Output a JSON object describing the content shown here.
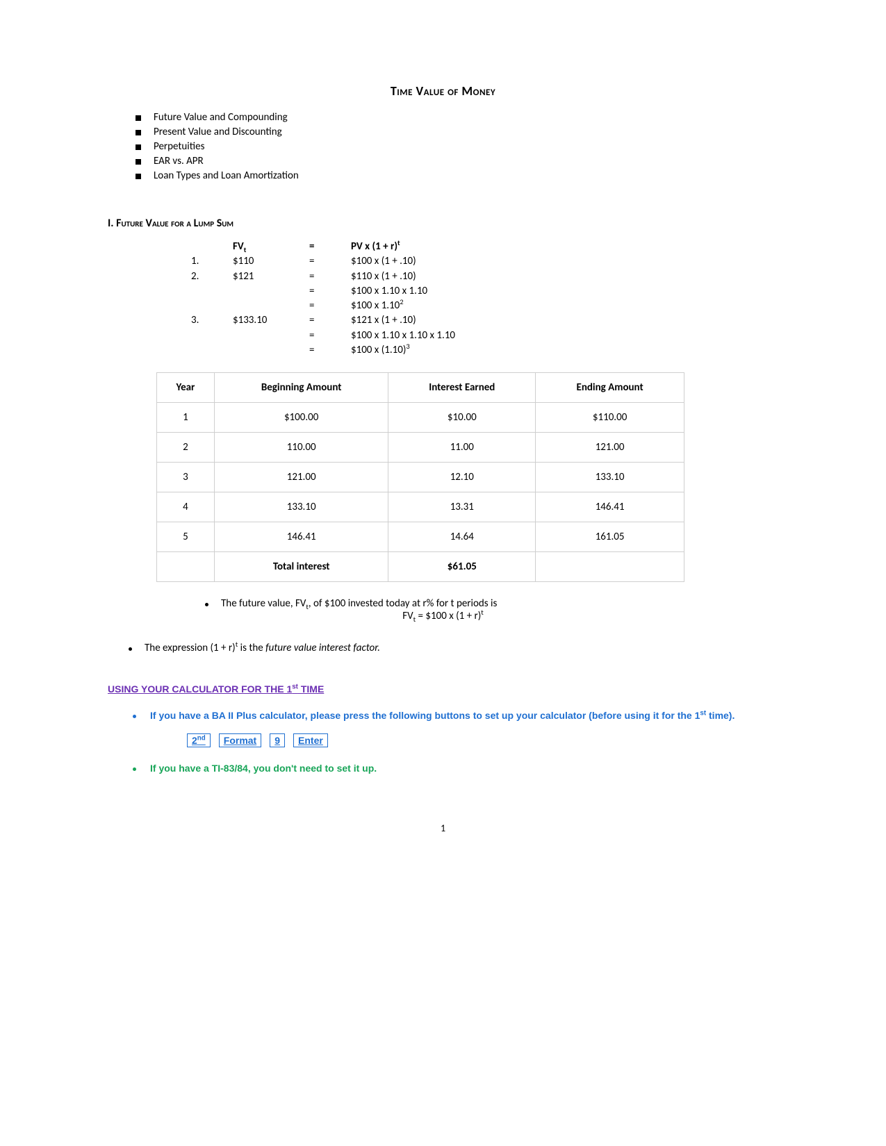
{
  "title": "Time Value of Money",
  "topics": [
    "Future Value and Compounding",
    "Present Value and Discounting",
    "Perpetuities",
    "EAR vs. APR",
    "Loan Types and Loan Amortization"
  ],
  "section1_heading": "I.  Future Value for a Lump Sum",
  "formula": {
    "header": {
      "lhs_html": "FV<sub>t</sub>",
      "rhs_html": "PV x (1 + r)<sup>t</sup>"
    },
    "rows": [
      {
        "num": "1.",
        "val": "$110",
        "rhs_html": "$100 x (1 + .10)"
      },
      {
        "num": "2.",
        "val": "$121",
        "rhs_html": "$110 x (1 + .10)"
      },
      {
        "num": "",
        "val": "",
        "rhs_html": "$100 x 1.10 x 1.10"
      },
      {
        "num": "",
        "val": "",
        "rhs_html": "$100 x 1.10<sup>2</sup>"
      },
      {
        "num": "3.",
        "val": "$133.10",
        "rhs_html": "$121 x (1 + .10)"
      },
      {
        "num": "",
        "val": "",
        "rhs_html": "$100 x 1.10 x 1.10 x 1.10"
      },
      {
        "num": "",
        "val": "",
        "rhs_html": "$100 x (1.10)<sup>3</sup>"
      }
    ]
  },
  "table": {
    "headers": [
      "Year",
      "Beginning Amount",
      "Interest Earned",
      "Ending Amount"
    ],
    "rows": [
      [
        "1",
        "$100.00",
        "$10.00",
        "$110.00"
      ],
      [
        "2",
        "110.00",
        "11.00",
        "121.00"
      ],
      [
        "3",
        "121.00",
        "12.10",
        "133.10"
      ],
      [
        "4",
        "133.10",
        "13.31",
        "146.41"
      ],
      [
        "5",
        "146.41",
        "14.64",
        "161.05"
      ]
    ],
    "total_label": "Total interest",
    "total_value": "$61.05"
  },
  "note1_html": "The future value, FV<sub>t</sub>, of $100 invested today at r% for t periods is",
  "note1_formula_html": "FV<sub>t</sub> = $100 x (1 + r)<sup>t</sup>",
  "note2_html": "The expression (1 + r)<sup>t</sup> is the <span class=\"ital\">future value interest factor.</span>",
  "calc_heading_html": "USING YOUR CALCULATOR FOR THE 1<sup>st</sup> TIME",
  "calc_item1_html": "If you have a BA II Plus calculator, please press the following buttons to set up your calculator (before using it for the 1<sup>st</sup> time).",
  "calc_buttons": [
    {
      "html": "2<sup>nd</sup>"
    },
    {
      "html": "Format"
    },
    {
      "html": "9"
    },
    {
      "html": "Enter"
    }
  ],
  "calc_item2": "If you have a TI-83/84, you don't need to set it up.",
  "page_number": "1",
  "colors": {
    "purple": "#6b2fb3",
    "blue": "#1f6fd1",
    "green": "#18a558",
    "border_gray": "#cfcfcf"
  }
}
